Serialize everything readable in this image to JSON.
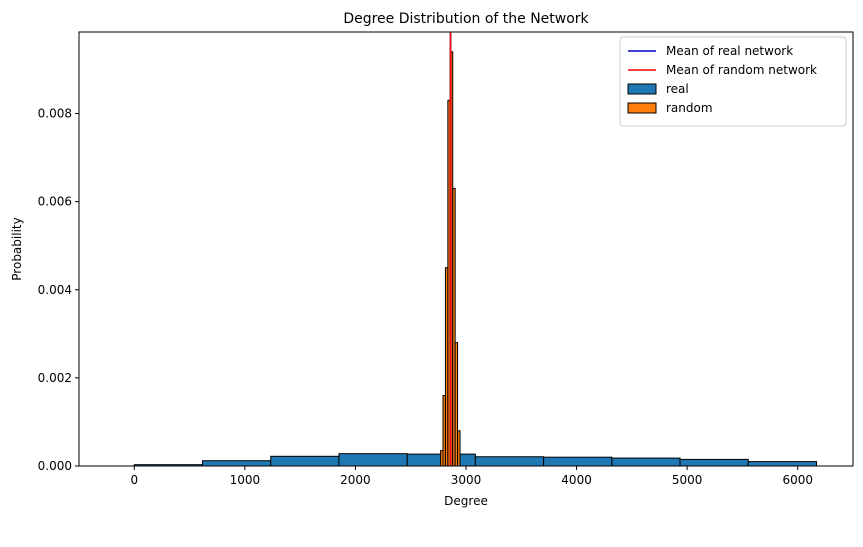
{
  "chart_data": {
    "type": "bar",
    "title": "Degree Distribution of the Network",
    "xlabel": "Degree",
    "ylabel": "Probability",
    "xlim": [
      -500,
      6500
    ],
    "ylim": [
      0,
      0.00985
    ],
    "xticks": [
      0,
      1000,
      2000,
      3000,
      4000,
      5000,
      6000
    ],
    "yticks": [
      0.0,
      0.002,
      0.004,
      0.006,
      0.008
    ],
    "ytick_labels": [
      "0.000",
      "0.002",
      "0.004",
      "0.006",
      "0.008"
    ],
    "grid": false,
    "legend_position": "top-right",
    "series": [
      {
        "name": "real",
        "kind": "histogram",
        "color": "#1f77b4",
        "edgecolor": "#000000",
        "bin_edges": [
          0,
          617,
          1234,
          1851,
          2468,
          3085,
          3702,
          4319,
          4936,
          5553,
          6170
        ],
        "values": [
          3e-05,
          0.00012,
          0.00022,
          0.00028,
          0.00027,
          0.00021,
          0.0002,
          0.00018,
          0.00015,
          0.0001,
          2e-05
        ]
      },
      {
        "name": "random",
        "kind": "histogram",
        "color": "#ff7f0e",
        "edgecolor": "#000000",
        "bin_edges": [
          2770,
          2792,
          2814,
          2836,
          2858,
          2880,
          2902,
          2924,
          2946
        ],
        "values": [
          0.00035,
          0.0016,
          0.0045,
          0.0083,
          0.0094,
          0.0063,
          0.0028,
          0.0008
        ]
      }
    ],
    "lines": [
      {
        "name": "Mean of real network",
        "orientation": "vertical",
        "x": 2860,
        "color": "#0000cc"
      },
      {
        "name": "Mean of random network",
        "orientation": "vertical",
        "x": 2860,
        "color": "#ff0000"
      }
    ],
    "legend": [
      {
        "label": "Mean of real network",
        "kind": "line",
        "color": "#0000cc"
      },
      {
        "label": "Mean of random network",
        "kind": "line",
        "color": "#ff0000"
      },
      {
        "label": "real",
        "kind": "patch",
        "color": "#1f77b4"
      },
      {
        "label": "random",
        "kind": "patch",
        "color": "#ff7f0e"
      }
    ]
  }
}
